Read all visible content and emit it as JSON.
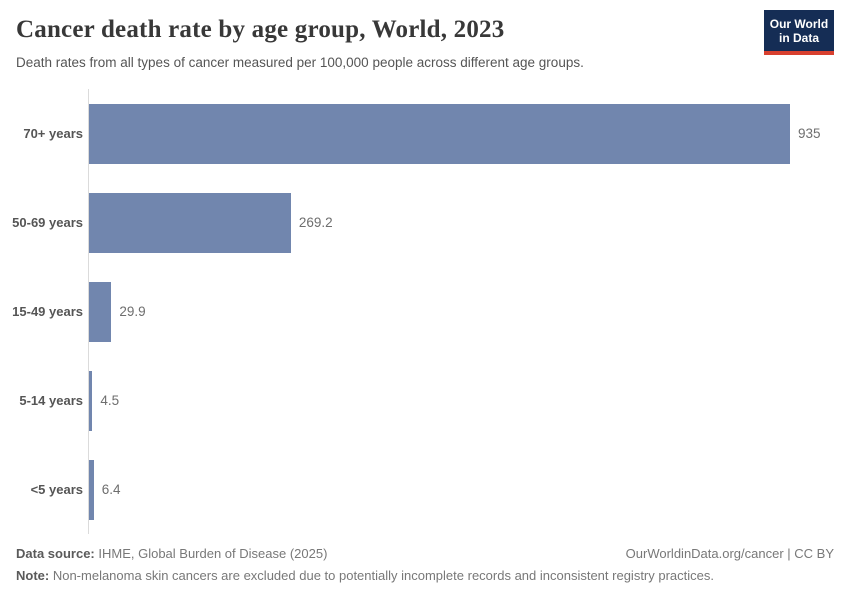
{
  "header": {
    "title": "Cancer death rate by age group, World, 2023",
    "subtitle": "Death rates from all types of cancer measured per 100,000 people across different age groups.",
    "logo": {
      "line1": "Our World",
      "line2": "in Data"
    }
  },
  "chart_data": {
    "type": "bar",
    "orientation": "horizontal",
    "title": "Cancer death rate by age group, World, 2023",
    "categories": [
      "70+ years",
      "50-69 years",
      "15-49 years",
      "5-14 years",
      "<5 years"
    ],
    "values": [
      935,
      269.2,
      29.9,
      4.5,
      6.4
    ],
    "value_labels": [
      "935",
      "269.2",
      "29.9",
      "4.5",
      "6.4"
    ],
    "xlabel": "",
    "ylabel": "",
    "xlim": [
      0,
      935
    ],
    "grid": false,
    "legend": "none",
    "bar_color": "#7186ae",
    "axis_color": "#dbdbdb"
  },
  "footer": {
    "data_source_label": "Data source:",
    "data_source_text": " IHME, Global Burden of Disease (2025)",
    "attribution": "OurWorldinData.org/cancer | CC BY",
    "note_label": "Note:",
    "note_text": " Non-melanoma skin cancers are excluded due to potentially incomplete records and inconsistent registry practices."
  }
}
